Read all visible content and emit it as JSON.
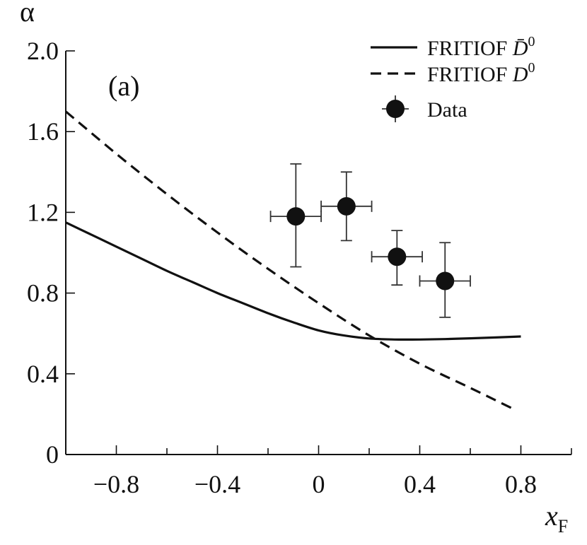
{
  "chart_data": {
    "type": "line",
    "panel_label": "(a)",
    "xlabel": "x",
    "xlabel_sub": "F",
    "ylabel": "α",
    "xlim": [
      -1.0,
      1.0
    ],
    "ylim": [
      0.0,
      2.0
    ],
    "xticks_major": [
      -0.8,
      -0.4,
      0,
      0.4,
      0.8
    ],
    "xtick_labels": [
      "−0.8",
      "−0.4",
      "0",
      "0.4",
      "0.8"
    ],
    "xticks_minor": [
      -1.0,
      -0.6,
      -0.2,
      0.2,
      0.6,
      1.0
    ],
    "yticks": [
      0,
      0.4,
      0.8,
      1.2,
      1.6,
      2.0
    ],
    "ytick_labels": [
      "0",
      "0.4",
      "0.8",
      "1.2",
      "1.6",
      "2.0"
    ],
    "legend_position": "top-right",
    "series": [
      {
        "name": "FRITIOF D̄⁰",
        "legend_base": "FRITIOF ",
        "legend_symbol": "D̄",
        "legend_sup": "0",
        "style": "solid",
        "x": [
          -1.0,
          -0.9,
          -0.8,
          -0.7,
          -0.6,
          -0.5,
          -0.4,
          -0.3,
          -0.2,
          -0.1,
          0.0,
          0.1,
          0.2,
          0.3,
          0.4,
          0.5,
          0.6,
          0.7,
          0.8
        ],
        "y": [
          1.15,
          1.09,
          1.03,
          0.97,
          0.91,
          0.855,
          0.8,
          0.75,
          0.7,
          0.655,
          0.615,
          0.59,
          0.575,
          0.57,
          0.57,
          0.572,
          0.576,
          0.58,
          0.585
        ]
      },
      {
        "name": "FRITIOF D⁰",
        "legend_base": "FRITIOF ",
        "legend_symbol": "D",
        "legend_sup": "0",
        "style": "dashed",
        "x": [
          -1.0,
          -0.8,
          -0.6,
          -0.4,
          -0.2,
          0.0,
          0.2,
          0.4,
          0.6,
          0.78
        ],
        "y": [
          1.7,
          1.49,
          1.29,
          1.1,
          0.92,
          0.75,
          0.59,
          0.45,
          0.33,
          0.22
        ]
      },
      {
        "name": "Data",
        "legend_base": "Data",
        "style": "points",
        "points": [
          {
            "x": -0.09,
            "y": 1.18,
            "xerr": 0.1,
            "yerr_low": 0.25,
            "yerr_high": 0.26
          },
          {
            "x": 0.11,
            "y": 1.23,
            "xerr": 0.1,
            "yerr_low": 0.17,
            "yerr_high": 0.17
          },
          {
            "x": 0.31,
            "y": 0.98,
            "xerr": 0.1,
            "yerr_low": 0.14,
            "yerr_high": 0.13
          },
          {
            "x": 0.5,
            "y": 0.86,
            "xerr": 0.1,
            "yerr_low": 0.18,
            "yerr_high": 0.19
          }
        ]
      }
    ]
  }
}
